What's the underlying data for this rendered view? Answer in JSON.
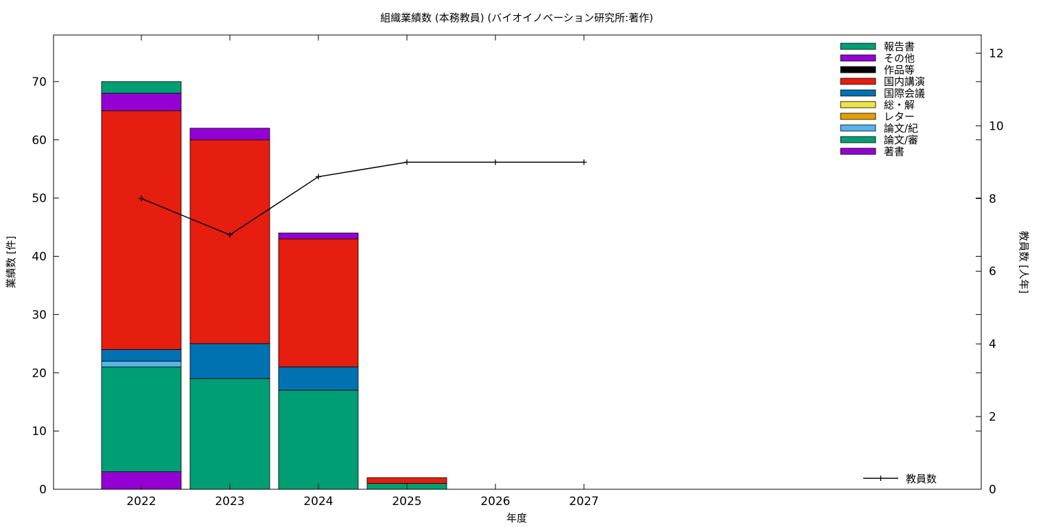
{
  "chart_data": {
    "type": "bar",
    "stacked": true,
    "title": "組織業績数 (本務教員) (バイオイノベーション研究所:著作)",
    "xlabel": "年度",
    "ylabel": "業績数 [件]",
    "y2label": "教員数 [人年]",
    "categories": [
      "2022",
      "2023",
      "2024",
      "2025",
      "2026",
      "2027"
    ],
    "ylim": [
      0,
      78
    ],
    "y_ticks": [
      0,
      10,
      20,
      30,
      40,
      50,
      60,
      70
    ],
    "y2lim": [
      0,
      12.5
    ],
    "y2_ticks": [
      0,
      2,
      4,
      6,
      8,
      10,
      12
    ],
    "grid": false,
    "legend_position": "top-right",
    "series": [
      {
        "name": "著書",
        "color": "#9400d3",
        "values": [
          3,
          0,
          0,
          0,
          0,
          0
        ]
      },
      {
        "name": "論文/審",
        "color": "#009e73",
        "values": [
          18,
          19,
          17,
          1,
          0,
          0
        ]
      },
      {
        "name": "論文/紀",
        "color": "#56b4e9",
        "values": [
          1,
          0,
          0,
          0,
          0,
          0
        ]
      },
      {
        "name": "レター",
        "color": "#e69f00",
        "values": [
          0,
          0,
          0,
          0,
          0,
          0
        ]
      },
      {
        "name": "総・解",
        "color": "#f0e442",
        "values": [
          0,
          0,
          0,
          0,
          0,
          0
        ]
      },
      {
        "name": "国際会議",
        "color": "#0072b2",
        "values": [
          2,
          6,
          4,
          0,
          0,
          0
        ]
      },
      {
        "name": "国内講演",
        "color": "#e51e10",
        "values": [
          41,
          35,
          22,
          1,
          0,
          0
        ]
      },
      {
        "name": "作品等",
        "color": "#000000",
        "values": [
          0,
          0,
          0,
          0,
          0,
          0
        ]
      },
      {
        "name": "その他",
        "color": "#9400d3",
        "values": [
          3,
          2,
          1,
          0,
          0,
          0
        ]
      },
      {
        "name": "報告書",
        "color": "#009e73",
        "values": [
          2,
          0,
          0,
          0,
          0,
          0
        ]
      }
    ],
    "line_series": {
      "name": "教員数",
      "axis": "y2",
      "color": "#000000",
      "values": [
        8,
        7,
        8.6,
        9,
        9,
        9
      ]
    }
  }
}
